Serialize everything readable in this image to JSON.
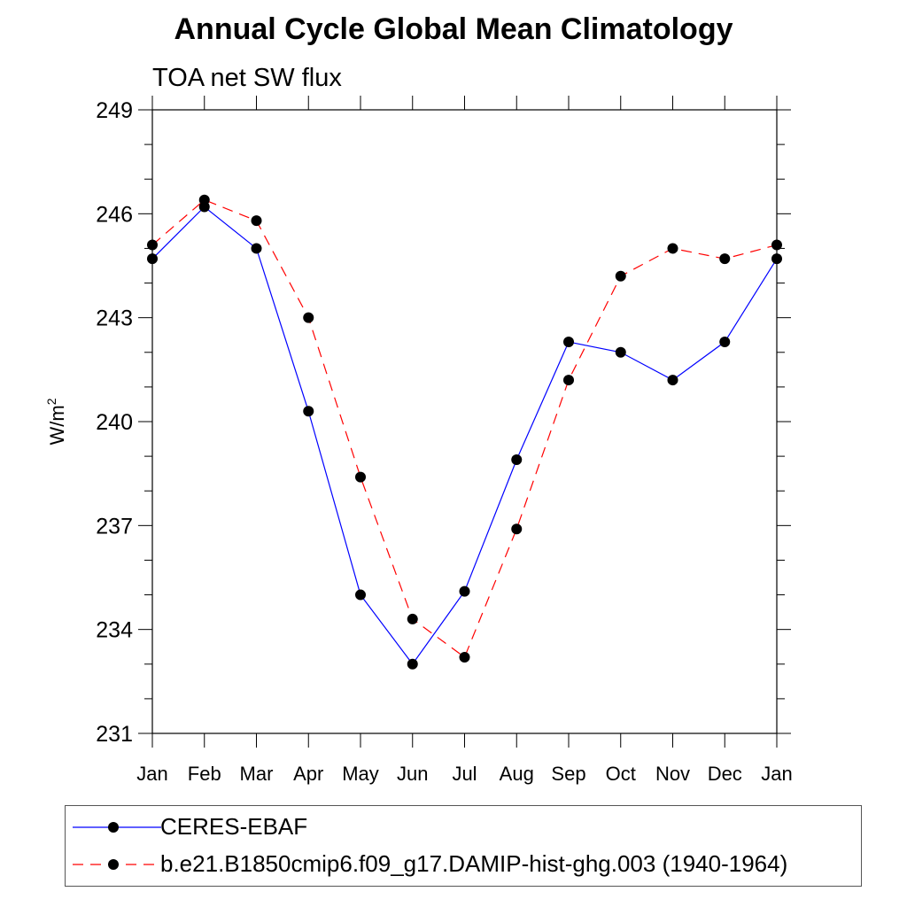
{
  "chart_data": {
    "type": "line",
    "title": "Annual Cycle Global Mean Climatology",
    "subtitle": "TOA net SW flux",
    "ylabel": "W/m",
    "ylabel_superscript": "2",
    "ylim": [
      231,
      249
    ],
    "yticks": [
      "231",
      "234",
      "237",
      "240",
      "243",
      "246",
      "249"
    ],
    "categories": [
      "Jan",
      "Feb",
      "Mar",
      "Apr",
      "May",
      "Jun",
      "Jul",
      "Aug",
      "Sep",
      "Oct",
      "Nov",
      "Dec",
      "Jan"
    ],
    "series": [
      {
        "name": "CERES-EBAF",
        "color": "#0000ff",
        "dash": "solid",
        "marker": "filled-circle",
        "values": [
          244.7,
          246.2,
          245.0,
          240.3,
          235.0,
          233.0,
          235.1,
          238.9,
          242.3,
          242.0,
          241.2,
          242.3,
          244.7
        ]
      },
      {
        "name": "b.e21.B1850cmip6.f09_g17.DAMIP-hist-ghg.003 (1940-1964)",
        "color": "#ff0000",
        "dash": "dashed",
        "marker": "filled-circle",
        "values": [
          245.1,
          246.4,
          245.8,
          243.0,
          238.4,
          234.3,
          233.2,
          236.9,
          241.2,
          244.2,
          245.0,
          244.7,
          245.1
        ]
      }
    ],
    "grid": false,
    "legend_position": "bottom"
  }
}
